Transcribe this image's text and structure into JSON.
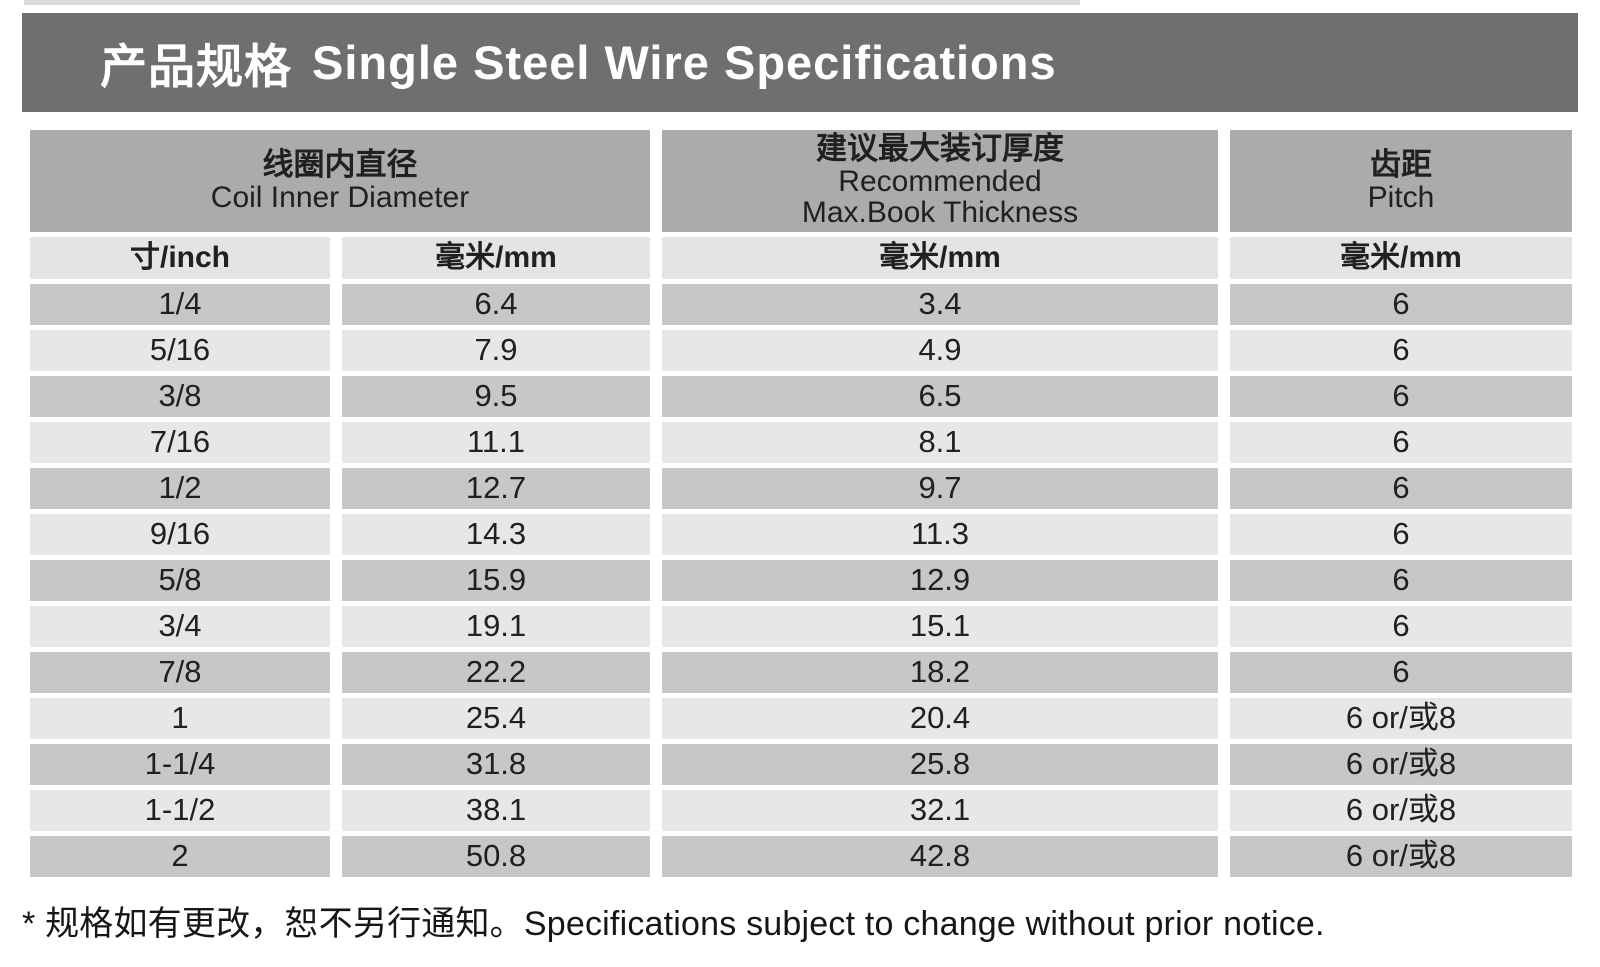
{
  "header": {
    "title_zh": "产品规格",
    "title_en": "Single Steel Wire Specifications"
  },
  "table": {
    "columns": {
      "coil": {
        "zh": "线圈内直径",
        "en": "Coil Inner Diameter"
      },
      "thickness": {
        "zh": "建议最大装订厚度",
        "en1": "Recommended",
        "en2": "Max.Book Thickness"
      },
      "pitch": {
        "zh": "齿距",
        "en": "Pitch"
      }
    },
    "units": [
      "寸/inch",
      "毫米/mm",
      "毫米/mm",
      "毫米/mm"
    ],
    "rows": [
      [
        "1/4",
        "6.4",
        "3.4",
        "6"
      ],
      [
        "5/16",
        "7.9",
        "4.9",
        "6"
      ],
      [
        "3/8",
        "9.5",
        "6.5",
        "6"
      ],
      [
        "7/16",
        "11.1",
        "8.1",
        "6"
      ],
      [
        "1/2",
        "12.7",
        "9.7",
        "6"
      ],
      [
        "9/16",
        "14.3",
        "11.3",
        "6"
      ],
      [
        "5/8",
        "15.9",
        "12.9",
        "6"
      ],
      [
        "3/4",
        "19.1",
        "15.1",
        "6"
      ],
      [
        "7/8",
        "22.2",
        "18.2",
        "6"
      ],
      [
        "1",
        "25.4",
        "20.4",
        "6 or/或8"
      ],
      [
        "1-1/4",
        "31.8",
        "25.8",
        "6 or/或8"
      ],
      [
        "1-1/2",
        "38.1",
        "32.1",
        "6 or/或8"
      ],
      [
        "2",
        "50.8",
        "42.8",
        "6 or/或8"
      ]
    ]
  },
  "footnote": {
    "text": "* 规格如有更改，恕不另行通知。Specifications subject to change without prior notice."
  },
  "colors": {
    "title_bar": "#6e6f71",
    "group_header": "#aaabad",
    "unit_row": "#e4e4e5",
    "row_dark": "#c6c7c8",
    "row_light": "#e7e7e8",
    "table_text": "#202022",
    "note_text": "#161616",
    "title_text": "#ffffff",
    "top_line": "#d9d9d9"
  }
}
